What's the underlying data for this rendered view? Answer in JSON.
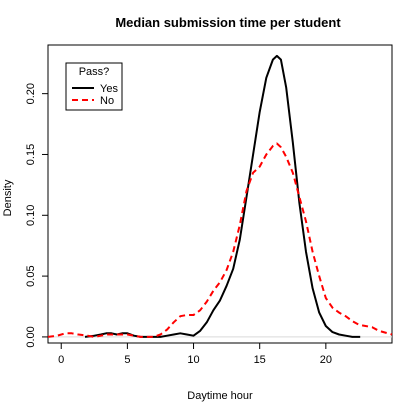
{
  "chart_data": {
    "type": "line",
    "title": "Median submission time per student",
    "xlabel": "Daytime hour",
    "ylabel": "Density",
    "xlim": [
      -1,
      25
    ],
    "ylim": [
      -0.005,
      0.24
    ],
    "x_ticks": [
      0,
      5,
      10,
      15,
      20
    ],
    "x_tick_labels": [
      "0",
      "5",
      "10",
      "15",
      "20"
    ],
    "y_ticks": [
      0.0,
      0.05,
      0.1,
      0.15,
      0.2
    ],
    "y_tick_labels": [
      "0.00",
      "0.05",
      "0.10",
      "0.15",
      "0.20"
    ],
    "legend": {
      "title": "Pass?",
      "placement": "top-left",
      "entries": [
        "Yes",
        "No"
      ]
    },
    "series": [
      {
        "name": "Yes",
        "color": "#000000",
        "line_style": "solid",
        "x": [
          1.8,
          2.5,
          3.0,
          3.4,
          3.8,
          4.2,
          4.6,
          5.0,
          5.5,
          6.0,
          6.5,
          7.0,
          7.5,
          8.0,
          8.5,
          9.0,
          9.5,
          10.0,
          10.5,
          11.0,
          11.5,
          12.0,
          12.5,
          13.0,
          13.5,
          14.0,
          14.5,
          15.0,
          15.5,
          16.0,
          16.3,
          16.6,
          17.0,
          17.5,
          18.0,
          18.5,
          19.0,
          19.5,
          20.0,
          20.5,
          21.0,
          21.5,
          22.0,
          22.6
        ],
        "y": [
          0.0,
          0.001,
          0.002,
          0.003,
          0.003,
          0.002,
          0.003,
          0.003,
          0.001,
          0.0,
          0.0,
          0.0,
          0.0,
          0.001,
          0.002,
          0.003,
          0.002,
          0.001,
          0.005,
          0.012,
          0.022,
          0.03,
          0.042,
          0.056,
          0.08,
          0.115,
          0.15,
          0.185,
          0.213,
          0.228,
          0.231,
          0.228,
          0.205,
          0.16,
          0.11,
          0.07,
          0.04,
          0.02,
          0.009,
          0.004,
          0.002,
          0.001,
          0.0,
          0.0
        ]
      },
      {
        "name": "No",
        "color": "#ff0000",
        "line_style": "dashed",
        "x": [
          -1.0,
          -0.3,
          0.3,
          0.8,
          1.3,
          2.0,
          2.5,
          3.0,
          3.5,
          4.0,
          4.5,
          5.0,
          5.5,
          6.0,
          6.5,
          7.0,
          7.5,
          8.0,
          8.5,
          9.0,
          9.5,
          10.0,
          10.5,
          11.0,
          11.5,
          12.0,
          12.5,
          13.0,
          13.5,
          14.0,
          14.5,
          15.0,
          15.5,
          16.0,
          16.3,
          16.6,
          17.0,
          17.5,
          18.0,
          18.5,
          19.0,
          19.5,
          20.0,
          20.5,
          21.0,
          21.5,
          22.0,
          22.5,
          23.0,
          23.5,
          24.0,
          25.0
        ],
        "y": [
          0.0,
          0.001,
          0.003,
          0.003,
          0.002,
          0.001,
          0.0,
          0.001,
          0.002,
          0.002,
          0.002,
          0.002,
          0.001,
          0.0,
          0.0,
          0.0,
          0.002,
          0.006,
          0.012,
          0.017,
          0.018,
          0.018,
          0.022,
          0.029,
          0.038,
          0.045,
          0.055,
          0.07,
          0.092,
          0.12,
          0.135,
          0.14,
          0.15,
          0.157,
          0.159,
          0.156,
          0.148,
          0.135,
          0.115,
          0.095,
          0.07,
          0.05,
          0.032,
          0.024,
          0.02,
          0.017,
          0.013,
          0.01,
          0.009,
          0.008,
          0.005,
          0.002
        ]
      }
    ]
  }
}
